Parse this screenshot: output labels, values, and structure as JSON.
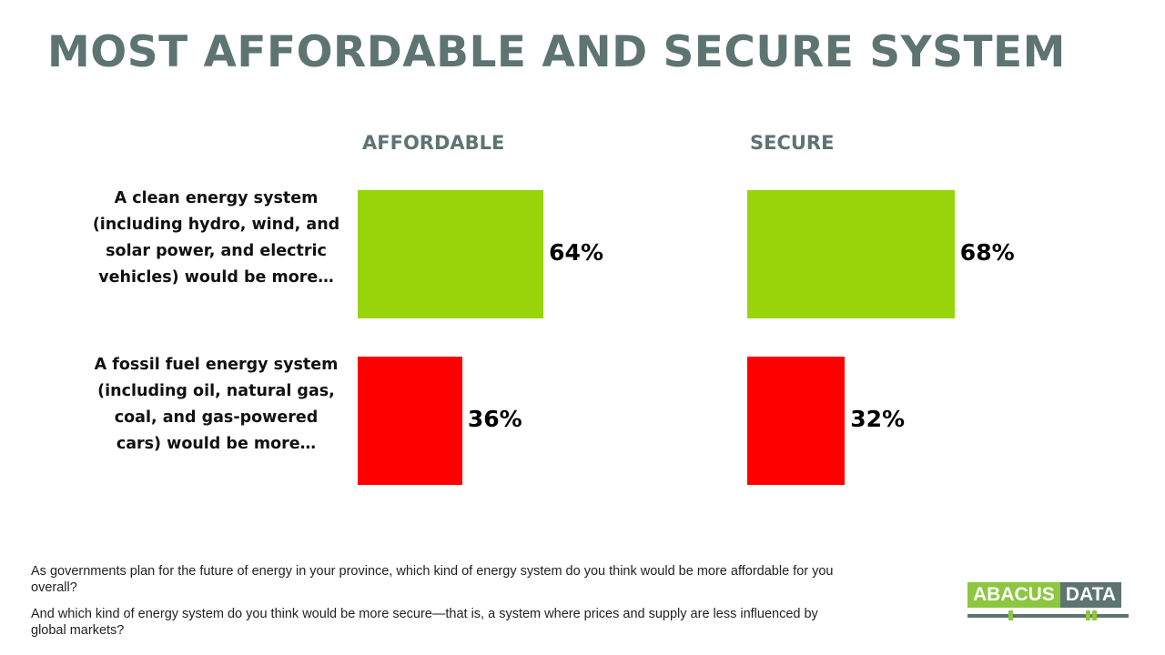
{
  "title": "MOST AFFORDABLE AND SECURE SYSTEM",
  "colors": {
    "clean": "#97d50a",
    "fossil": "#ff0000",
    "title": "#5d7471",
    "logo_green": "#8dc63f",
    "logo_gray": "#5d7471"
  },
  "chart_data": {
    "type": "bar",
    "orientation": "horizontal",
    "categories": [
      "A clean energy system (including hydro, wind, and solar power, and electric vehicles) would be more…",
      "A fossil fuel energy system (including oil, natural gas, coal, and gas-powered cars) would be more…"
    ],
    "panels": [
      {
        "label": "AFFORDABLE",
        "values": [
          64,
          36
        ],
        "data_labels": [
          "64%",
          "36%"
        ]
      },
      {
        "label": "SECURE",
        "values": [
          68,
          32
        ],
        "data_labels": [
          "68%",
          "32%"
        ]
      }
    ],
    "unit": "%",
    "grid": false
  },
  "notes": [
    "As governments plan for the future of energy in your province, which kind of energy system do you think would be more affordable for you overall?",
    "And which kind of energy system do you think would be more secure—that is, a system where prices and supply are less influenced by global markets?"
  ],
  "logo": {
    "left": "ABACUS",
    "right": "DATA"
  }
}
